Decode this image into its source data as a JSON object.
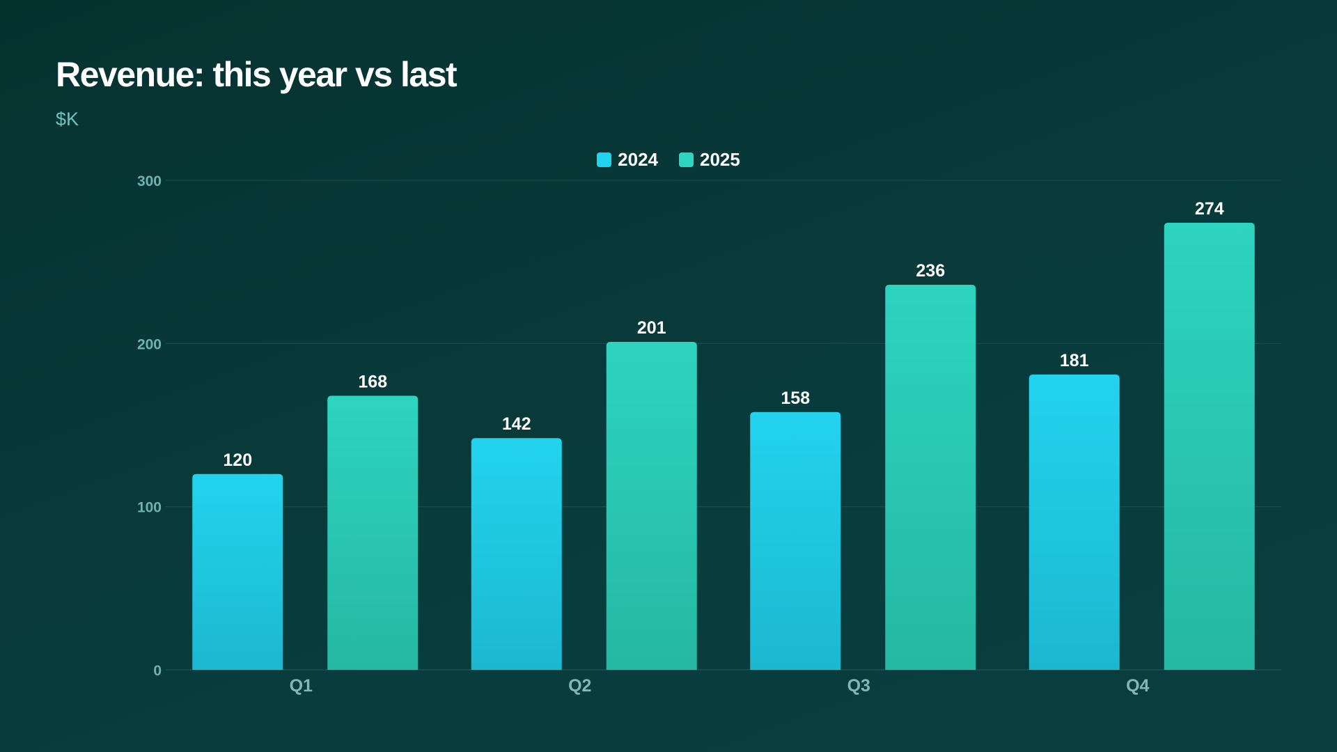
{
  "chart_data": {
    "type": "bar",
    "title": "Revenue: this year vs last",
    "subtitle": "$K",
    "categories": [
      "Q1",
      "Q2",
      "Q3",
      "Q4"
    ],
    "series": [
      {
        "name": "2024",
        "values": [
          120,
          142,
          158,
          181
        ],
        "color": "#22d3ee"
      },
      {
        "name": "2025",
        "values": [
          168,
          201,
          236,
          274
        ],
        "color": "#2dd4bf"
      }
    ],
    "ylim": [
      0,
      300
    ],
    "yticks": [
      0,
      100,
      200,
      300
    ],
    "grid": true,
    "legend": "top-center",
    "data_labels": true
  }
}
